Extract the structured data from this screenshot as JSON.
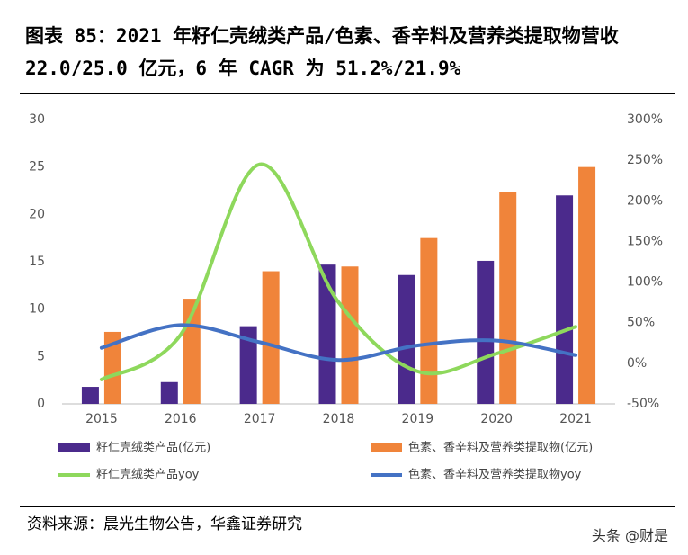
{
  "chart_data": {
    "type": "bar-line",
    "title": "图表 85：2021 年籽仁壳绒类产品/色素、香辛料及营养类提取物营收 22.0/25.0 亿元，6 年 CAGR 为 51.2%/21.9%",
    "categories": [
      "2015",
      "2016",
      "2017",
      "2018",
      "2019",
      "2020",
      "2021"
    ],
    "ylim": [
      0,
      30
    ],
    "yticks": [
      0,
      5,
      10,
      15,
      20,
      25,
      30
    ],
    "y2lim": [
      -50,
      300
    ],
    "y2ticks": [
      {
        "value": -50,
        "label": "-50%"
      },
      {
        "value": 0,
        "label": "0%"
      },
      {
        "value": 50,
        "label": "50%"
      },
      {
        "value": 100,
        "label": "100%"
      },
      {
        "value": 150,
        "label": "150%"
      },
      {
        "value": 200,
        "label": "200%"
      },
      {
        "value": 250,
        "label": "250%"
      },
      {
        "value": 300,
        "label": "300%"
      }
    ],
    "series": [
      {
        "name": "籽仁壳绒类产品(亿元)",
        "type": "bar",
        "color": "#4b2a8c",
        "values": [
          1.8,
          2.3,
          8.2,
          14.7,
          13.6,
          15.1,
          22.0
        ]
      },
      {
        "name": "色素、香辛料及营养类提取物(亿元)",
        "type": "bar",
        "color": "#f0843a",
        "values": [
          7.6,
          11.1,
          14.0,
          14.5,
          17.5,
          22.4,
          25.0
        ]
      },
      {
        "name": "籽仁壳绒类产品yoy",
        "type": "line",
        "axis": "y2",
        "color": "#8ed85c",
        "values": [
          -20,
          35,
          245,
          75,
          -10,
          12,
          45
        ]
      },
      {
        "name": "色素、香辛料及营养类提取物yoy",
        "type": "line",
        "axis": "y2",
        "color": "#4472c4",
        "values": [
          19,
          47,
          26,
          4,
          22,
          28,
          10
        ]
      }
    ]
  },
  "source": "资料来源：晨光生物公告，华鑫证券研究",
  "watermark": "头条 @财是"
}
